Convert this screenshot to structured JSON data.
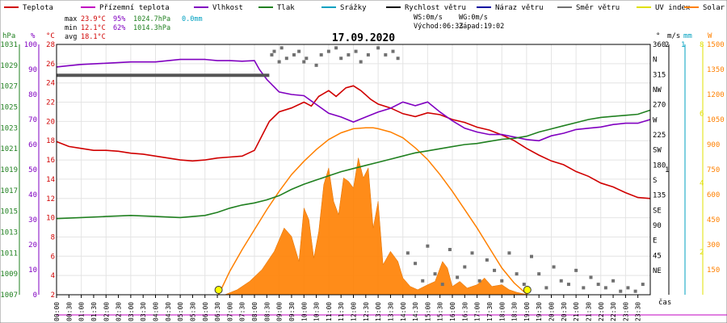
{
  "chart_data": {
    "type": "line",
    "title": "17.09.2020",
    "legend": [
      {
        "label": "Teplota",
        "color": "#d00000"
      },
      {
        "label": "Přízemní teplota",
        "color": "#c000c0"
      },
      {
        "label": "Vlhkost",
        "color": "#8000c0"
      },
      {
        "label": "Tlak",
        "color": "#208020"
      },
      {
        "label": "Srážky",
        "color": "#00a0c0"
      },
      {
        "label": "Rychlost větru",
        "color": "#000000"
      },
      {
        "label": "Náraz větru",
        "color": "#0000a0"
      },
      {
        "label": "Směr větru",
        "color": "#707070"
      },
      {
        "label": "UV index",
        "color": "#e0e000"
      },
      {
        "label": "Solar",
        "color": "#ff8000"
      }
    ],
    "stats": {
      "max_label": "max",
      "min_label": "min",
      "avg_label": "avg",
      "max": {
        "temp": "23.9°C",
        "hum": "95%",
        "press": "1024.7hPa",
        "rain": "0.0mm"
      },
      "min": {
        "temp": "12.1°C",
        "hum": "62%",
        "press": "1014.3hPa"
      },
      "avg": {
        "temp": "18.1°C"
      }
    },
    "wind_info": {
      "ws": "WS:0m/s",
      "wg": "WG:0m/s",
      "sunrise": "Východ:06:33",
      "sunset": "Západ:19:02"
    },
    "axes": {
      "hpa_unit": "hPa",
      "hum_unit": "%",
      "temp_unit": "°C",
      "dir_unit": "°",
      "ms_unit": "m/s",
      "mm_unit": "mm",
      "w_unit": "W",
      "time_label": "čas",
      "hpa_ticks": [
        "1031",
        "1029",
        "1027",
        "1025",
        "1023",
        "1021",
        "1019",
        "1017",
        "1015",
        "1013",
        "1011",
        "1009",
        "1007"
      ],
      "hum_ticks": [
        "100",
        "90",
        "80",
        "70",
        "60",
        "50",
        "40",
        "30",
        "20",
        "10",
        "0"
      ],
      "temp_ticks": [
        "28",
        "26",
        "24",
        "22",
        "20",
        "18",
        "16",
        "14",
        "12",
        "10",
        "8",
        "6",
        "4",
        "2"
      ],
      "dir_ticks": [
        "360",
        "N",
        "315",
        "NW",
        "270",
        "W",
        "225",
        "SW",
        "180",
        "S",
        "135",
        "SE",
        "90",
        "E",
        "45",
        "NE"
      ],
      "ms_ticks": [
        "2",
        "1"
      ],
      "mm_ticks": [
        "1"
      ],
      "uv_ticks": [
        "8",
        "6",
        "4",
        "2"
      ],
      "w_ticks": [
        "1500",
        "1350",
        "1200",
        "1050",
        "900",
        "750",
        "600",
        "450",
        "300",
        "150"
      ],
      "time_ticks": [
        "00:00",
        "00:30",
        "01:00",
        "01:30",
        "02:00",
        "02:30",
        "03:00",
        "03:30",
        "04:00",
        "04:30",
        "05:00",
        "05:30",
        "06:00",
        "06:30",
        "07:00",
        "07:30",
        "08:00",
        "08:30",
        "09:00",
        "09:30",
        "10:00",
        "10:30",
        "11:00",
        "11:30",
        "12:00",
        "12:30",
        "13:00",
        "13:30",
        "14:00",
        "14:30",
        "15:00",
        "15:30",
        "16:00",
        "16:30",
        "17:00",
        "17:30",
        "18:00",
        "18:30",
        "19:00",
        "19:30",
        "20:00",
        "20:30",
        "21:00",
        "21:30",
        "22:00",
        "22:30",
        "23:00",
        "23:30"
      ]
    },
    "ranges": {
      "temp": [
        2,
        28
      ],
      "hum": [
        0,
        100
      ],
      "press": [
        1007,
        1031
      ],
      "dir": [
        0,
        360
      ],
      "solar": [
        0,
        1500
      ],
      "time_h": [
        0,
        24
      ]
    },
    "series": [
      {
        "name": "Teplota",
        "color": "#d00000",
        "x": [
          0,
          0.5,
          1,
          1.5,
          2,
          2.5,
          3,
          3.5,
          4,
          4.5,
          5,
          5.5,
          6,
          6.5,
          7,
          7.5,
          8,
          8.3,
          8.6,
          9,
          9.5,
          10,
          10.3,
          10.6,
          11,
          11.3,
          11.7,
          12,
          12.3,
          12.7,
          13,
          13.5,
          14,
          14.5,
          15,
          15.5,
          16,
          16.5,
          17,
          17.5,
          18,
          18.5,
          19,
          19.5,
          20,
          20.5,
          21,
          21.5,
          22,
          22.5,
          23,
          23.5,
          24
        ],
        "y": [
          17.9,
          17.4,
          17.2,
          17.0,
          17.0,
          16.9,
          16.7,
          16.6,
          16.4,
          16.2,
          16.0,
          15.9,
          16.0,
          16.2,
          16.3,
          16.4,
          17.0,
          18.5,
          20.0,
          21.0,
          21.4,
          22.0,
          21.6,
          22.6,
          23.2,
          22.6,
          23.5,
          23.7,
          23.2,
          22.3,
          21.8,
          21.4,
          20.8,
          20.5,
          20.9,
          20.7,
          20.2,
          19.9,
          19.4,
          19.1,
          18.6,
          18.0,
          17.2,
          16.5,
          15.9,
          15.5,
          14.8,
          14.3,
          13.6,
          13.2,
          12.6,
          12.1,
          12.0
        ]
      },
      {
        "name": "Vlhkost",
        "color": "#8000c0",
        "x": [
          0,
          0.5,
          1,
          2,
          3,
          4,
          5,
          6,
          6.5,
          7,
          7.5,
          8,
          8.2,
          8.5,
          8.8,
          9,
          9.5,
          10,
          10.5,
          11,
          11.5,
          12,
          12.5,
          13,
          13.5,
          14,
          14.5,
          15,
          15.5,
          16,
          16.5,
          17,
          17.5,
          18,
          18.5,
          19,
          19.5,
          20,
          20.5,
          21,
          21.5,
          22,
          22.5,
          23,
          23.5,
          24
        ],
        "y": [
          91,
          91.5,
          92,
          92.5,
          93,
          93,
          94,
          94,
          93.5,
          93.5,
          93.3,
          93.5,
          90,
          86,
          83,
          81,
          80,
          79.5,
          76,
          72.5,
          71,
          69,
          71,
          73,
          74.5,
          77,
          75.5,
          77,
          73,
          69.5,
          66.5,
          65,
          64,
          64,
          63,
          62,
          61.5,
          63.5,
          64.5,
          66,
          66.5,
          67,
          68,
          68.5,
          68.5,
          70
        ]
      },
      {
        "name": "Tlak",
        "color": "#208020",
        "x": [
          0,
          1,
          2,
          3,
          4,
          5,
          6,
          6.5,
          7,
          7.5,
          8,
          8.5,
          9,
          9.5,
          10,
          10.5,
          11,
          11.5,
          12,
          12.5,
          13,
          13.5,
          14,
          14.5,
          15,
          15.5,
          16,
          16.5,
          17,
          17.5,
          18,
          18.5,
          19,
          19.5,
          20,
          20.5,
          21,
          21.5,
          22,
          22.5,
          23,
          23.5,
          24
        ],
        "y": [
          1014.3,
          1014.4,
          1014.5,
          1014.6,
          1014.5,
          1014.4,
          1014.6,
          1014.9,
          1015.3,
          1015.6,
          1015.8,
          1016.1,
          1016.5,
          1017.1,
          1017.6,
          1018.0,
          1018.4,
          1018.8,
          1019.1,
          1019.4,
          1019.7,
          1020.0,
          1020.3,
          1020.6,
          1020.8,
          1021.0,
          1021.2,
          1021.4,
          1021.5,
          1021.7,
          1021.9,
          1022.0,
          1022.2,
          1022.6,
          1022.9,
          1023.2,
          1023.5,
          1023.8,
          1024.0,
          1024.1,
          1024.2,
          1024.3,
          1024.7
        ]
      },
      {
        "name": "Rychlost větru",
        "color": "#555555",
        "x": [
          0,
          8.6
        ],
        "y": [
          24.8,
          24.8
        ]
      }
    ],
    "solar_area": {
      "x": [
        6.8,
        7.3,
        7.8,
        8.3,
        8.8,
        9.2,
        9.5,
        9.8,
        10.0,
        10.2,
        10.4,
        10.6,
        10.8,
        11.0,
        11.2,
        11.4,
        11.6,
        11.8,
        12.0,
        12.2,
        12.4,
        12.6,
        12.8,
        13.0,
        13.2,
        13.5,
        13.8,
        14.0,
        14.3,
        14.6,
        15.0,
        15.3,
        15.6,
        15.8,
        16.0,
        16.3,
        16.6,
        17.0,
        17.3,
        17.6,
        18.0,
        18.3,
        18.6,
        18.9,
        19.1
      ],
      "y": [
        0,
        30,
        80,
        150,
        260,
        400,
        350,
        200,
        520,
        450,
        220,
        380,
        660,
        760,
        560,
        480,
        700,
        680,
        640,
        820,
        700,
        760,
        400,
        560,
        180,
        260,
        200,
        100,
        50,
        30,
        60,
        80,
        200,
        160,
        50,
        80,
        40,
        60,
        100,
        50,
        60,
        30,
        15,
        5,
        0
      ]
    },
    "solar_theoretical": {
      "x": [
        6.55,
        7,
        7.5,
        8,
        8.5,
        9,
        9.5,
        10,
        10.5,
        11,
        11.5,
        12,
        12.5,
        12.8,
        13,
        13.5,
        14,
        14.5,
        15,
        15.5,
        16,
        16.5,
        17,
        17.5,
        18,
        18.5,
        19.03
      ],
      "y": [
        0,
        140,
        270,
        390,
        510,
        620,
        720,
        800,
        870,
        930,
        970,
        995,
        1000,
        1000,
        995,
        975,
        940,
        880,
        810,
        720,
        620,
        510,
        400,
        280,
        160,
        70,
        0
      ]
    },
    "wind_dir_points": {
      "x": [
        8.7,
        8.8,
        9.0,
        9.1,
        9.3,
        9.6,
        9.8,
        10.0,
        10.1,
        10.5,
        10.7,
        11.0,
        11.3,
        11.5,
        11.8,
        12.1,
        12.3,
        12.6,
        13.0,
        13.3,
        13.6,
        13.8,
        14.2,
        14.5,
        14.8,
        15.0,
        15.3,
        15.6,
        15.9,
        16.2,
        16.5,
        16.8,
        17.1,
        17.4,
        17.7,
        18.0,
        18.3,
        18.6,
        18.9,
        19.2,
        19.5,
        19.8,
        20.1,
        20.4,
        20.7,
        21.0,
        21.3,
        21.6,
        21.9,
        22.2,
        22.5,
        22.8,
        23.1,
        23.4,
        23.7
      ],
      "y": [
        345,
        350,
        335,
        355,
        340,
        345,
        350,
        335,
        340,
        330,
        345,
        350,
        355,
        340,
        345,
        350,
        335,
        345,
        355,
        345,
        350,
        340,
        60,
        45,
        20,
        70,
        30,
        15,
        65,
        25,
        40,
        60,
        20,
        50,
        35,
        20,
        60,
        30,
        15,
        55,
        30,
        10,
        40,
        20,
        15,
        35,
        10,
        25,
        15,
        10,
        20,
        5,
        10,
        5,
        15
      ]
    },
    "sun_markers": {
      "x": [
        6.55,
        19.03
      ]
    }
  }
}
